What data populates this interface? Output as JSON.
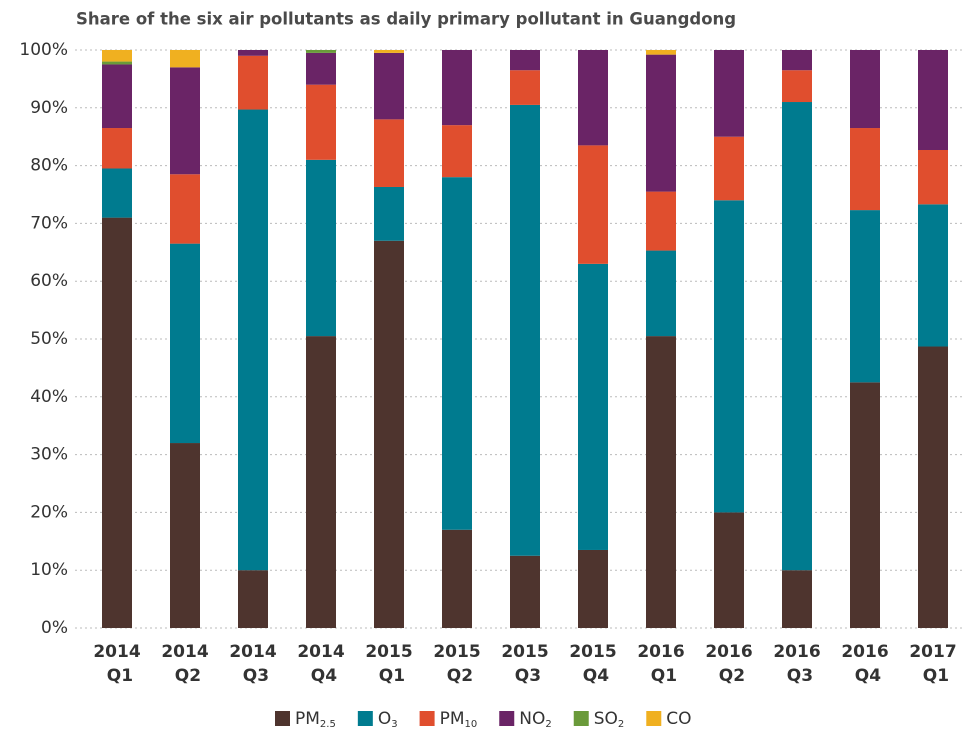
{
  "chart_data": {
    "type": "stacked_bar",
    "title": "Share of the six air pollutants as daily primary pollutant in Guangdong",
    "categories": [
      "2014 Q1",
      "2014 Q2",
      "2014 Q3",
      "2014 Q4",
      "2015 Q1",
      "2015 Q2",
      "2015 Q3",
      "2015 Q4",
      "2016 Q1",
      "2016 Q2",
      "2016 Q3",
      "2016 Q4",
      "2017 Q1"
    ],
    "series": [
      {
        "name": "PM2.5",
        "color": "#4e342e",
        "values": [
          71,
          32,
          10,
          50.5,
          67,
          17,
          12.5,
          13.5,
          50.5,
          20,
          10,
          42.5,
          48.7
        ]
      },
      {
        "name": "O3",
        "color": "#007b8f",
        "values": [
          8.5,
          34.5,
          79.7,
          30.5,
          9.3,
          61,
          78,
          49.5,
          14.8,
          54,
          81,
          29.8,
          24.6
        ]
      },
      {
        "name": "PM10",
        "color": "#e04e2e",
        "values": [
          7,
          12,
          9.3,
          13,
          11.7,
          9,
          6,
          20.5,
          10.2,
          11,
          5.5,
          14.2,
          9.4
        ]
      },
      {
        "name": "NO2",
        "color": "#6a2466",
        "values": [
          11,
          18.5,
          1,
          5.5,
          11.5,
          13,
          3.5,
          16.5,
          23.7,
          15,
          3.5,
          13.5,
          17.3
        ]
      },
      {
        "name": "SO2",
        "color": "#6a9a3a",
        "values": [
          0.5,
          0,
          0,
          0.5,
          0,
          0,
          0,
          0,
          0,
          0,
          0,
          0,
          0
        ]
      },
      {
        "name": "CO",
        "color": "#f0b020",
        "values": [
          2,
          3,
          0,
          0,
          0.5,
          0,
          0,
          0,
          0.8,
          0,
          0,
          0,
          0
        ]
      }
    ],
    "ylim": [
      0,
      100
    ],
    "yticks": [
      {
        "value": 0,
        "label": "0%"
      },
      {
        "value": 10,
        "label": "10%"
      },
      {
        "value": 20,
        "label": "20%"
      },
      {
        "value": 30,
        "label": "30%"
      },
      {
        "value": 40,
        "label": "40%"
      },
      {
        "value": 50,
        "label": "50%"
      },
      {
        "value": 60,
        "label": "60%"
      },
      {
        "value": 70,
        "label": "70%"
      },
      {
        "value": 80,
        "label": "80%"
      },
      {
        "value": 90,
        "label": "90%"
      },
      {
        "value": 100,
        "label": "100%"
      }
    ],
    "grid": true,
    "legend": "bottom"
  }
}
